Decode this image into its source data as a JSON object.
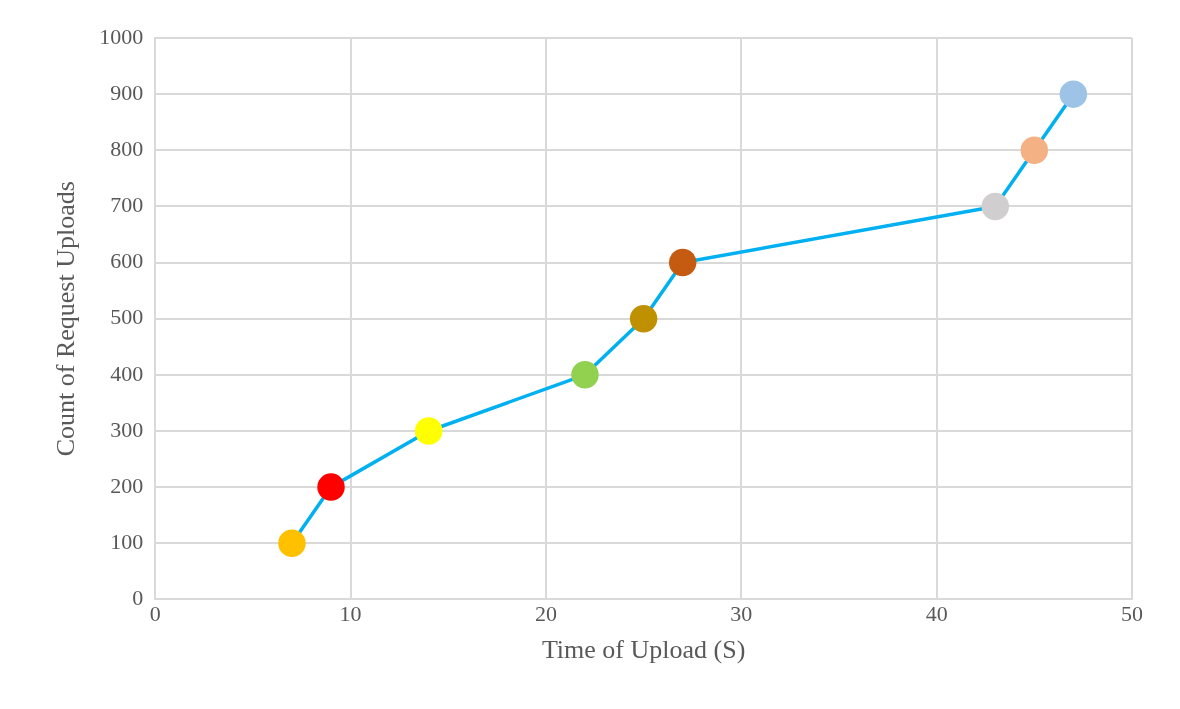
{
  "chart_data": {
    "type": "line",
    "xlabel": "Time of Upload (S)",
    "ylabel": "Count of Request Uploads",
    "x": [
      7,
      9,
      14,
      22,
      25,
      27,
      43,
      45,
      47
    ],
    "series": [
      {
        "color": "#00b0f0",
        "values": [
          100,
          200,
          300,
          400,
          500,
          600,
          700,
          800,
          900
        ],
        "colors": [
          "#ffc000",
          "#ff0000",
          "#ffff00",
          "#92d050",
          "#bf9000",
          "#c55a11",
          "#d0cece",
          "#f4b183",
          "#9dc3e6"
        ]
      }
    ],
    "xlim": [
      0,
      50
    ],
    "xticks": [
      0,
      10,
      20,
      30,
      40,
      50
    ],
    "ylim": [
      0,
      1000
    ],
    "yticks": [
      0,
      100,
      200,
      300,
      400,
      500,
      600,
      700,
      800,
      900,
      1000
    ],
    "grid": true,
    "legend": false,
    "marker": "circle",
    "line_style": "solid"
  }
}
